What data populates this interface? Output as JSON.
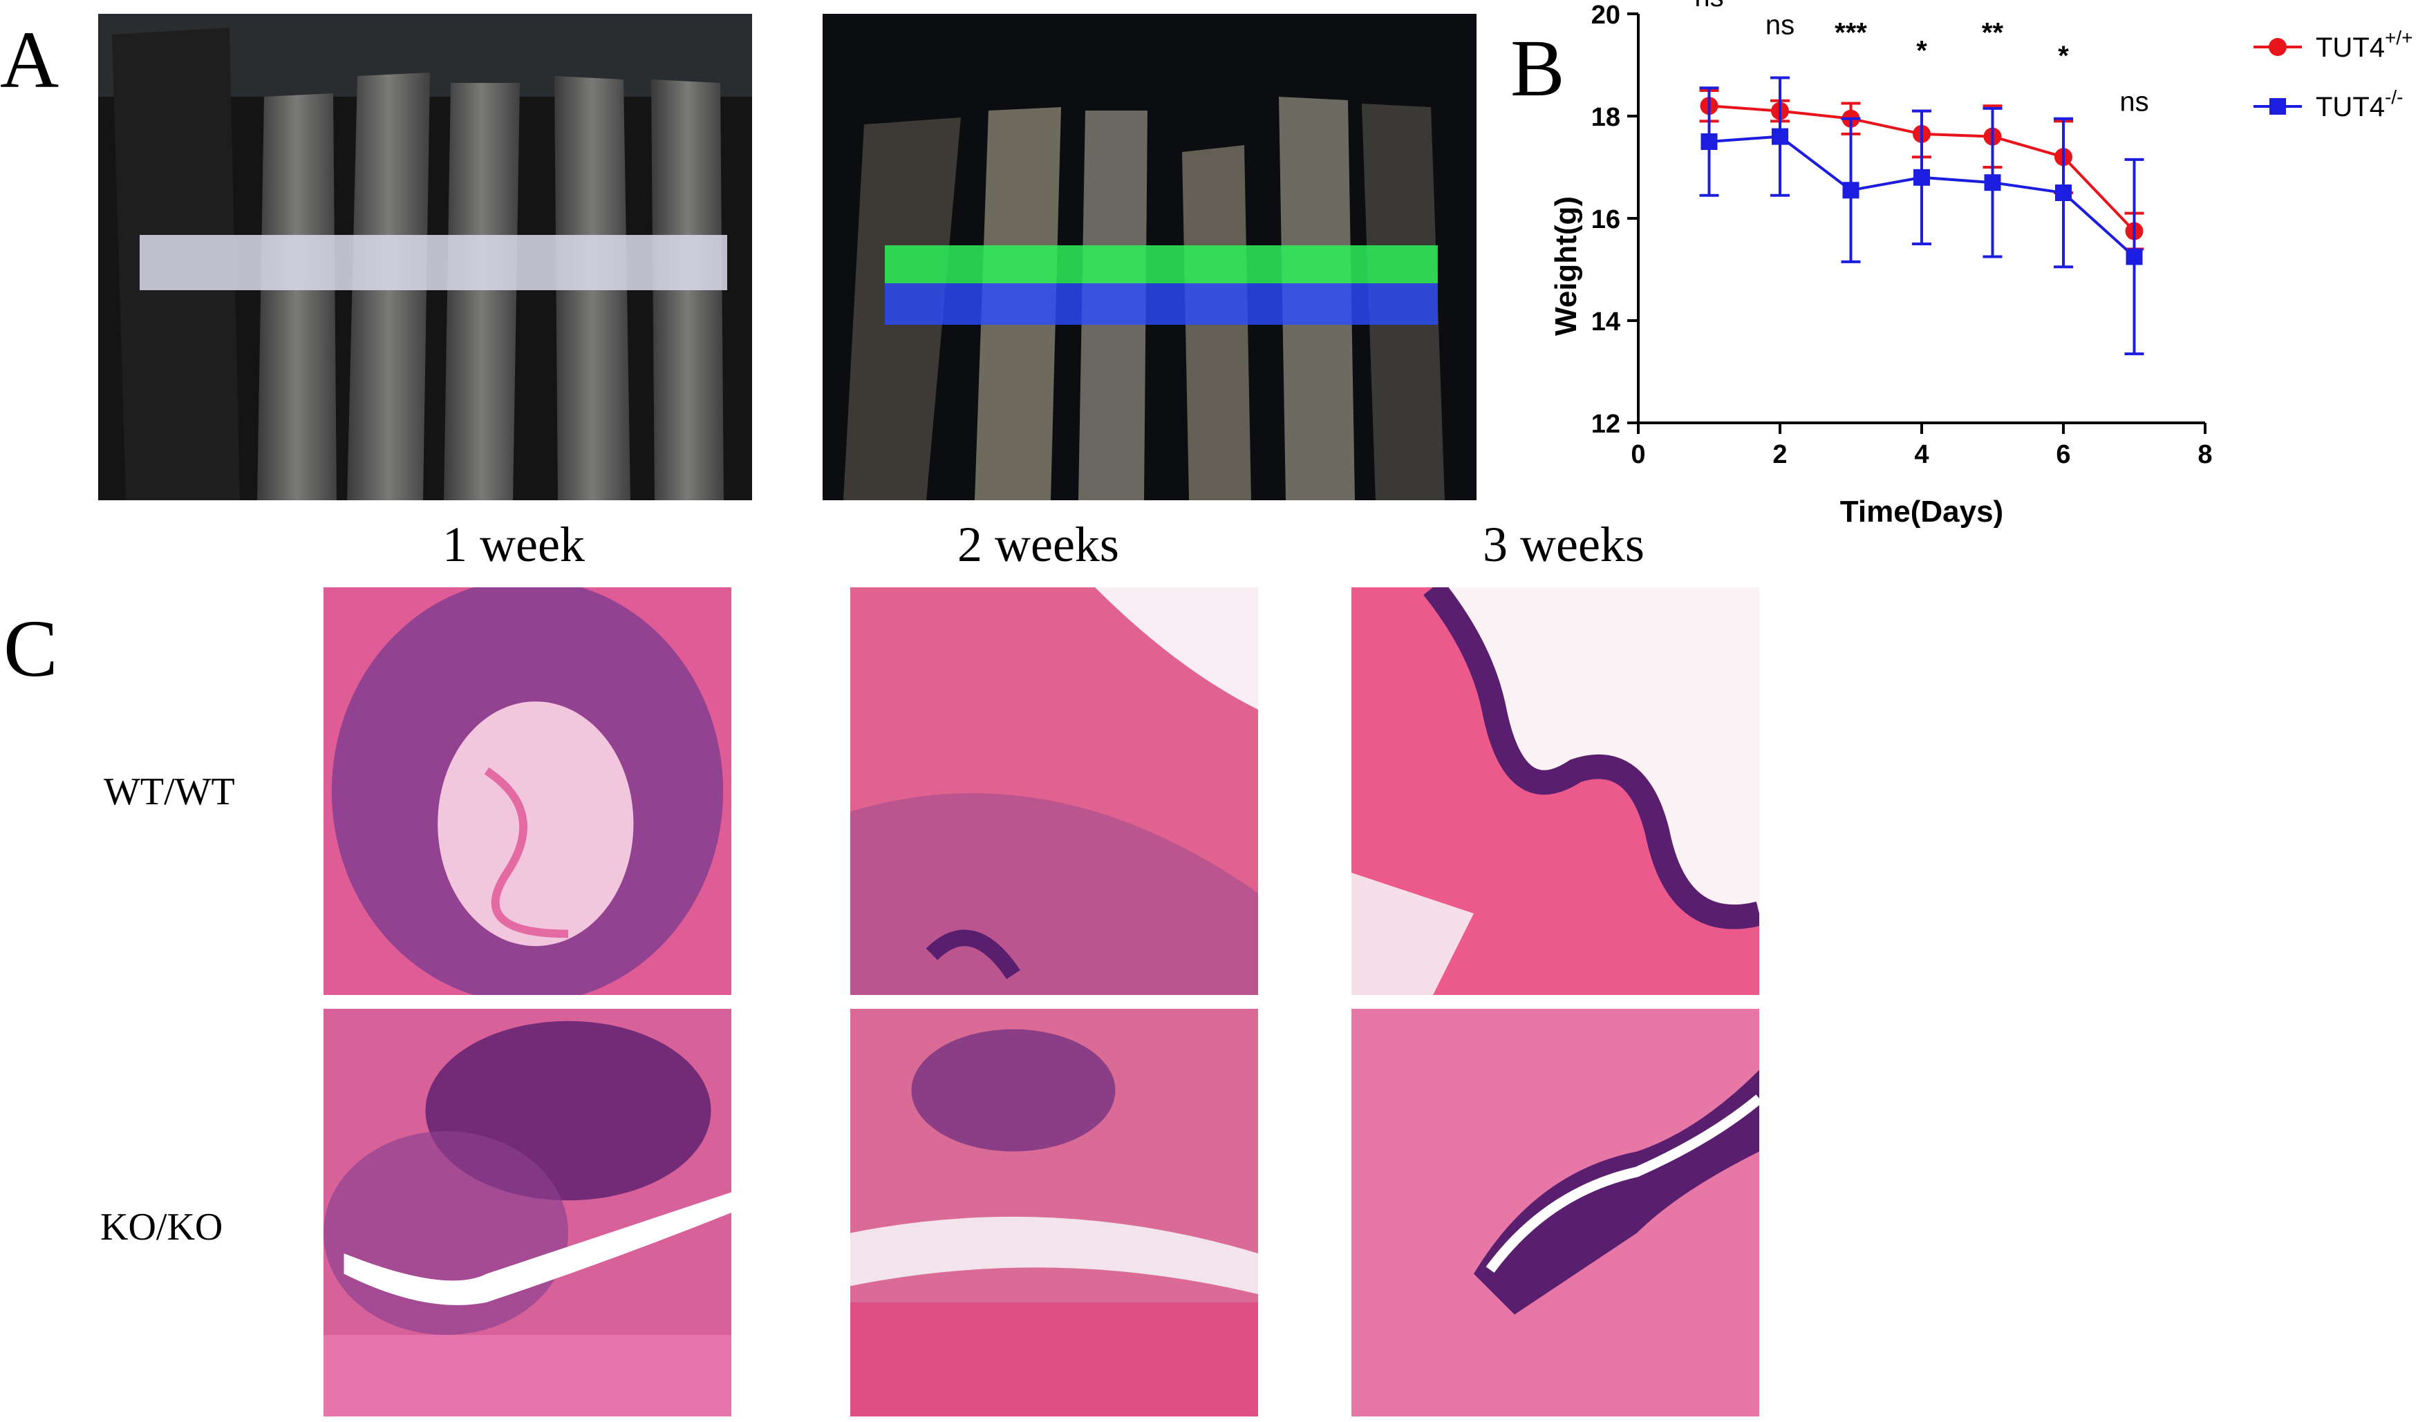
{
  "panels": {
    "a_label": "A",
    "b_label": "B",
    "c_label": "C"
  },
  "histology": {
    "columns": [
      "1 week",
      "2 weeks",
      "3 weeks"
    ],
    "rows": [
      "WT/WT",
      "KO/KO"
    ]
  },
  "chart_data": {
    "type": "line",
    "xlabel": "Time(Days)",
    "ylabel": "Weight(g)",
    "xlim": [
      0,
      8
    ],
    "ylim": [
      12,
      20
    ],
    "xticks": [
      0,
      2,
      4,
      6,
      8
    ],
    "yticks": [
      12,
      14,
      16,
      18,
      20
    ],
    "grid": false,
    "legend": "top-right",
    "x": [
      1,
      2,
      3,
      4,
      5,
      6,
      7
    ],
    "series": [
      {
        "name": "TUT4+/+",
        "name_base": "TUT4",
        "name_sup": "+/+",
        "color": "#e8141c",
        "marker": "circle",
        "values": [
          18.2,
          18.1,
          17.95,
          17.65,
          17.6,
          17.2,
          15.75
        ],
        "error": [
          0.3,
          0.2,
          0.3,
          0.45,
          0.6,
          0.7,
          0.35
        ]
      },
      {
        "name": "TUT4-/-",
        "name_base": "TUT4",
        "name_sup": "-/-",
        "color": "#1d1de0",
        "marker": "square",
        "values": [
          17.5,
          17.6,
          16.55,
          16.8,
          16.7,
          16.5,
          15.25
        ],
        "error": [
          1.05,
          1.15,
          1.4,
          1.3,
          1.45,
          1.45,
          1.9
        ]
      }
    ],
    "annotations": [
      {
        "x": 1,
        "text": "ns",
        "y": 20.15
      },
      {
        "x": 2,
        "text": "ns",
        "y": 19.6
      },
      {
        "x": 3,
        "text": "***",
        "y": 19.45
      },
      {
        "x": 4,
        "text": "*",
        "y": 19.1
      },
      {
        "x": 5,
        "text": "**",
        "y": 19.45
      },
      {
        "x": 6,
        "text": "*",
        "y": 19.0
      },
      {
        "x": 7,
        "text": "ns",
        "y": 18.1
      }
    ]
  },
  "colors": {
    "he_pink": "#e35b95",
    "he_purple": "#5a1e6e",
    "gel_green": "#2ef05a",
    "gel_blue": "#2a4cff"
  }
}
